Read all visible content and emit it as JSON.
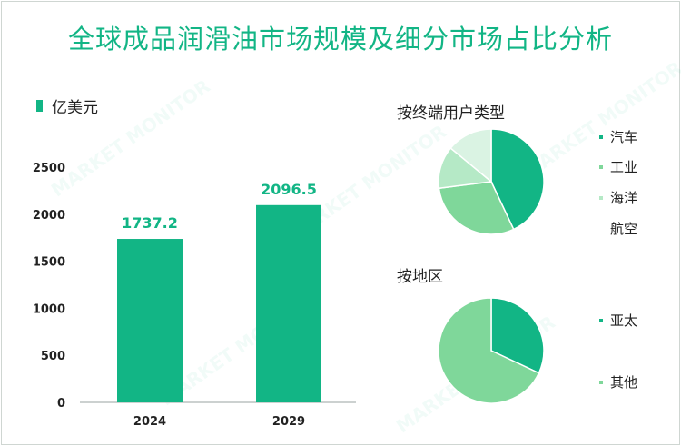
{
  "title": "全球成品润滑油市场规模及细分市场占比分析",
  "unit_label": "亿美元",
  "colors": {
    "primary": "#12b585",
    "mid": "#7fd79a",
    "light": "#b5e9c6",
    "lighter": "#daf3e3"
  },
  "chart_data": [
    {
      "type": "bar",
      "title": "全球成品润滑油市场规模",
      "ylabel": "亿美元",
      "categories": [
        "2024",
        "2029"
      ],
      "values": [
        1737.2,
        2096.5
      ],
      "value_labels": [
        "1737.2",
        "2096.5"
      ],
      "ylim": [
        0,
        2500
      ],
      "yticks": [
        "0",
        "500",
        "1000",
        "1500",
        "2000",
        "2500"
      ],
      "ytick_values": [
        0,
        500,
        1000,
        1500,
        2000,
        2500
      ],
      "grid": false
    },
    {
      "type": "pie",
      "title": "按终端用户类型",
      "labels": [
        "汽车",
        "工业",
        "海洋",
        "航空"
      ],
      "values": [
        43,
        30,
        13,
        14
      ]
    },
    {
      "type": "pie",
      "title": "按地区",
      "labels": [
        "亚太",
        "其他"
      ],
      "values": [
        32,
        68
      ]
    }
  ]
}
